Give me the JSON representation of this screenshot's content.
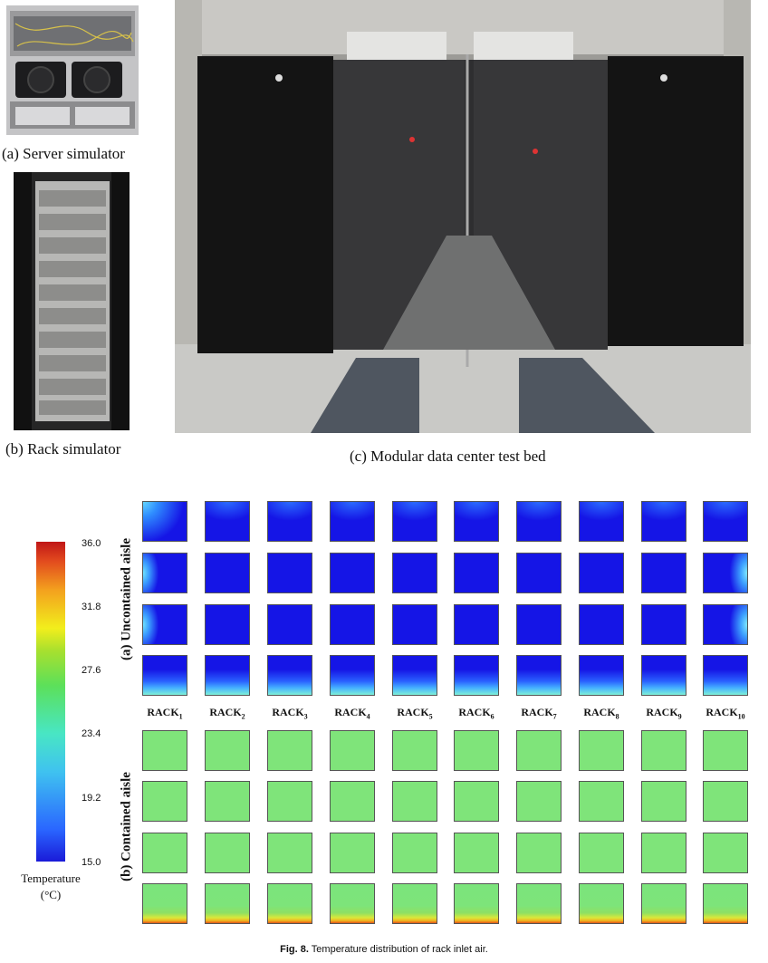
{
  "photos": {
    "a": {
      "caption": "(a) Server simulator"
    },
    "b": {
      "caption": "(b) Rack simulator"
    },
    "c": {
      "caption": "(c) Modular data center test bed"
    }
  },
  "colorbar": {
    "ticks": [
      "36.0",
      "31.8",
      "27.6",
      "23.4",
      "19.2",
      "15.0"
    ],
    "title_line1": "Temperature",
    "title_line2": "(°C)",
    "min": 15.0,
    "max": 36.0
  },
  "racks": [
    {
      "base": "RACK",
      "sub": "1"
    },
    {
      "base": "RACK",
      "sub": "2"
    },
    {
      "base": "RACK",
      "sub": "3"
    },
    {
      "base": "RACK",
      "sub": "4"
    },
    {
      "base": "RACK",
      "sub": "5"
    },
    {
      "base": "RACK",
      "sub": "6"
    },
    {
      "base": "RACK",
      "sub": "7"
    },
    {
      "base": "RACK",
      "sub": "8"
    },
    {
      "base": "RACK",
      "sub": "9"
    },
    {
      "base": "RACK",
      "sub": "10"
    }
  ],
  "panels": {
    "uncontained": {
      "label": "(a) Uncontained aisle",
      "rows": 4
    },
    "contained": {
      "label": "(b) Contained aisle",
      "rows": 4
    }
  },
  "figure": {
    "label": "Fig. 8.",
    "text": " Temperature distribution of rack inlet air."
  }
}
